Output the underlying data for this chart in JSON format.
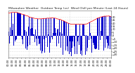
{
  "title": "Milwaukee Weather  Outdoor Temp (vs)  Wind Chill per Minute (Last 24 Hours)",
  "background_color": "#ffffff",
  "plot_bg_color": "#ffffff",
  "grid_color": "#c0c0c0",
  "bar_color": "#0000cc",
  "line_color": "#ff0000",
  "ylim": [
    -35,
    40
  ],
  "yticks": [
    30,
    25,
    20,
    15,
    10,
    5,
    0,
    -5,
    -10,
    -15,
    -20,
    -25,
    -30
  ],
  "n_points": 1440,
  "title_fontsize": 3.2,
  "tick_fontsize": 2.5
}
